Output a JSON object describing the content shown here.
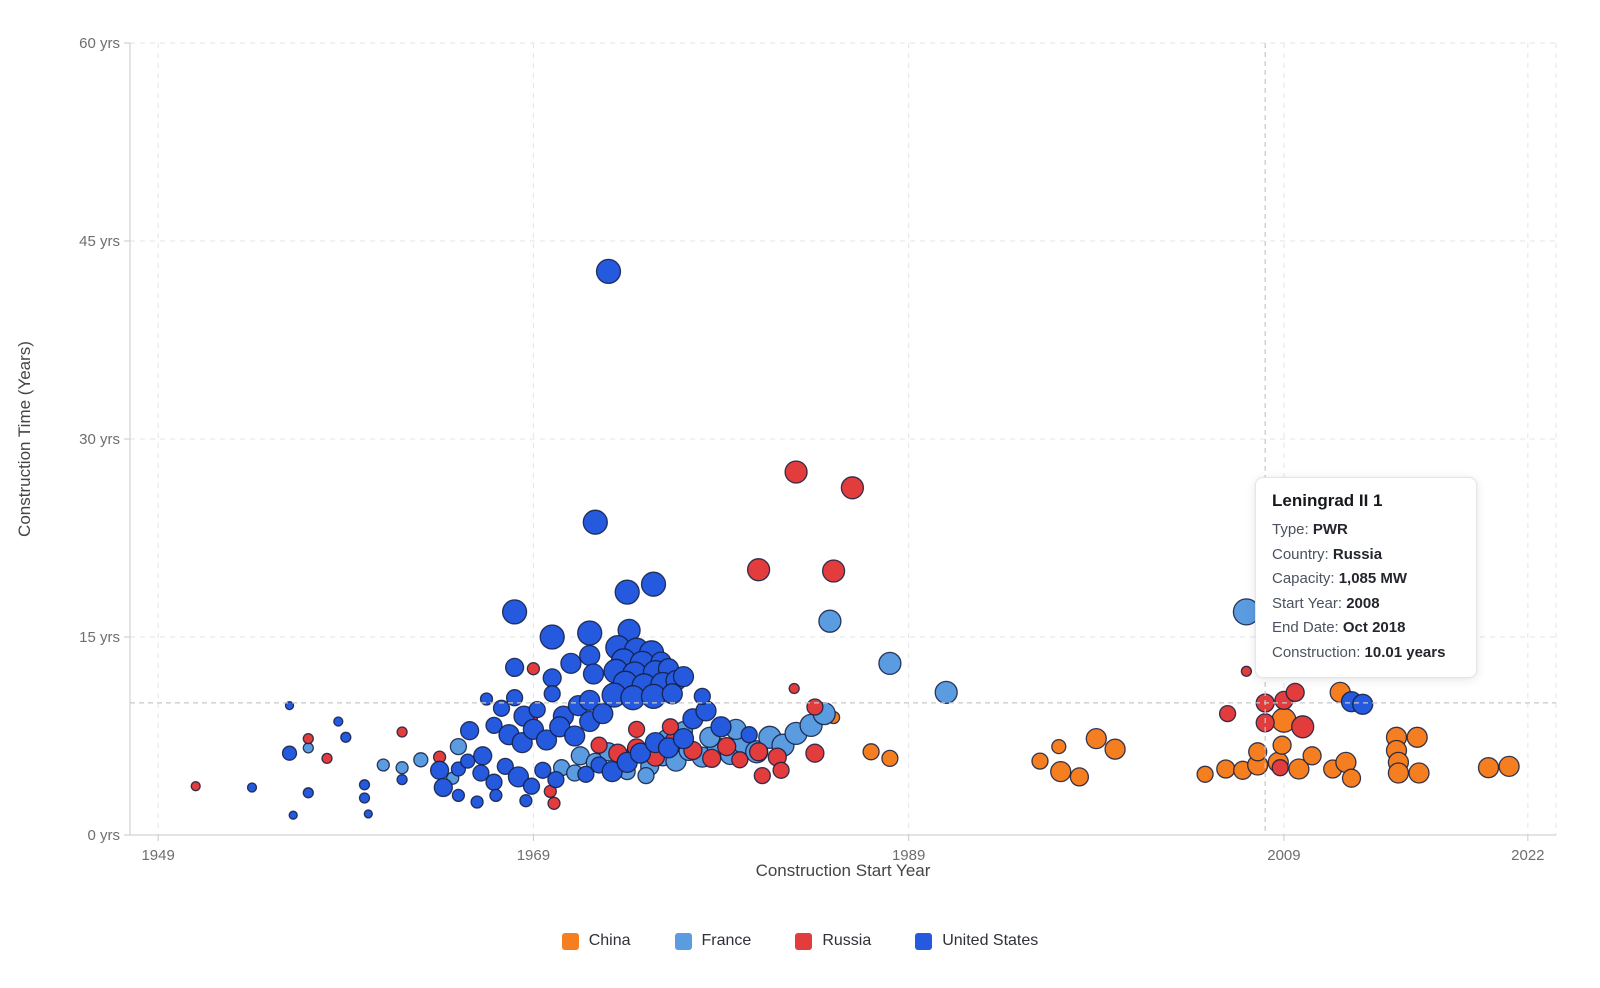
{
  "hovered_point": {
    "series": "Russia",
    "start_year": 2008,
    "construction_years": 10.01
  },
  "tooltip": {
    "title": "Leningrad II 1",
    "rows": [
      {
        "label": "Type:",
        "value": "PWR"
      },
      {
        "label": "Country:",
        "value": "Russia"
      },
      {
        "label": "Capacity:",
        "value": "1,085 MW"
      },
      {
        "label": "Start Year:",
        "value": "2008"
      },
      {
        "label": "End Date:",
        "value": "Oct 2018"
      },
      {
        "label": "Construction:",
        "value": "10.01 years"
      }
    ]
  },
  "legend": {
    "items": [
      {
        "label": "China",
        "color": "#F57E20"
      },
      {
        "label": "France",
        "color": "#5B9BE0"
      },
      {
        "label": "Russia",
        "color": "#E23C3C"
      },
      {
        "label": "United States",
        "color": "#2559DE"
      }
    ]
  },
  "chart_data": {
    "type": "scatter",
    "title": "",
    "xlabel": "Construction Start Year",
    "ylabel": "Construction Time (Years)",
    "xlim": [
      1947.5,
      2023.5
    ],
    "ylim": [
      0,
      60
    ],
    "x_ticks": [
      1949,
      1969,
      1989,
      2009,
      2022
    ],
    "y_ticks": [
      0,
      15,
      30,
      45,
      60
    ],
    "x_tick_labels": [
      "1949",
      "1969",
      "1989",
      "2009",
      "2022"
    ],
    "y_tick_labels": [
      "0 yrs",
      "15 yrs",
      "30 yrs",
      "45 yrs",
      "60 yrs"
    ],
    "grid": "dashed",
    "legend_position": "bottom",
    "bubble_note": "points are [start_year, construction_years, bubble_radius_px]; radius encodes capacity (MW)",
    "crosshair": {
      "x": 2008,
      "y": 10.01
    },
    "series": [
      {
        "name": "China",
        "color": "#F57E20",
        "points": [
          [
            1985.0,
            8.9,
            6
          ],
          [
            1987.0,
            6.3,
            8
          ],
          [
            1988.0,
            5.8,
            8
          ],
          [
            1996.0,
            5.6,
            8
          ],
          [
            1997.0,
            6.7,
            7
          ],
          [
            1997.1,
            4.8,
            10
          ],
          [
            1998.1,
            4.4,
            9
          ],
          [
            1999.0,
            7.3,
            10
          ],
          [
            2000.0,
            6.5,
            10
          ],
          [
            2004.8,
            4.6,
            8
          ],
          [
            2005.9,
            5.0,
            9
          ],
          [
            2006.8,
            4.9,
            9
          ],
          [
            2007.6,
            5.3,
            10
          ],
          [
            2008.7,
            5.5,
            10
          ],
          [
            2009.8,
            5.0,
            10
          ],
          [
            2008.9,
            6.8,
            9
          ],
          [
            2007.6,
            6.3,
            9
          ],
          [
            2009.0,
            8.7,
            12
          ],
          [
            2012.0,
            10.8,
            10
          ],
          [
            2011.6,
            5.0,
            9
          ],
          [
            2012.3,
            5.5,
            10
          ],
          [
            2012.6,
            4.3,
            9
          ],
          [
            2010.5,
            6.0,
            9
          ],
          [
            2015.0,
            7.4,
            10
          ],
          [
            2016.1,
            7.4,
            10
          ],
          [
            2015.0,
            6.4,
            10
          ],
          [
            2015.1,
            5.5,
            10
          ],
          [
            2015.1,
            4.7,
            10
          ],
          [
            2016.2,
            4.7,
            10
          ],
          [
            2019.9,
            5.1,
            10
          ],
          [
            2021.0,
            5.2,
            10
          ]
        ]
      },
      {
        "name": "France",
        "color": "#5B9BE0",
        "points": [
          [
            1957.0,
            6.6,
            5
          ],
          [
            1961.0,
            5.3,
            6
          ],
          [
            1962.0,
            5.1,
            6
          ],
          [
            1963.0,
            5.7,
            7
          ],
          [
            1965.0,
            6.7,
            8
          ],
          [
            1964.7,
            4.3,
            6
          ],
          [
            1970.5,
            5.1,
            8
          ],
          [
            1971.2,
            4.7,
            8
          ],
          [
            1971.5,
            6.0,
            9
          ],
          [
            1972.3,
            5.5,
            9
          ],
          [
            1973.0,
            6.3,
            9
          ],
          [
            1973.8,
            5.8,
            9
          ],
          [
            1974.5,
            6.5,
            9
          ],
          [
            1975.2,
            5.2,
            9
          ],
          [
            1975.9,
            6.0,
            10
          ],
          [
            1976.6,
            5.6,
            10
          ],
          [
            1977.3,
            6.4,
            10
          ],
          [
            1978.0,
            5.9,
            10
          ],
          [
            1978.8,
            6.6,
            10
          ],
          [
            1979.5,
            6.1,
            10
          ],
          [
            1980.2,
            7.0,
            11
          ],
          [
            1980.9,
            6.3,
            11
          ],
          [
            1981.6,
            7.4,
            11
          ],
          [
            1982.3,
            6.8,
            11
          ],
          [
            1983.0,
            7.7,
            11
          ],
          [
            1983.8,
            8.3,
            11
          ],
          [
            1984.5,
            9.2,
            11
          ],
          [
            1976.1,
            7.3,
            9
          ],
          [
            1977.0,
            7.9,
            9
          ],
          [
            1978.4,
            7.4,
            10
          ],
          [
            1979.8,
            8.0,
            10
          ],
          [
            1974.0,
            4.8,
            8
          ],
          [
            1975.0,
            4.5,
            8
          ],
          [
            1984.8,
            16.2,
            11
          ],
          [
            1988.0,
            13.0,
            11
          ],
          [
            1991.0,
            10.8,
            11
          ],
          [
            2007.0,
            16.9,
            13
          ]
        ]
      },
      {
        "name": "Russia",
        "color": "#E23C3C",
        "points": [
          [
            1951.0,
            3.7,
            4.5
          ],
          [
            1957.0,
            7.3,
            5
          ],
          [
            1958.0,
            5.8,
            5
          ],
          [
            1962.0,
            7.8,
            5
          ],
          [
            1964.0,
            5.9,
            6
          ],
          [
            1969.0,
            12.6,
            6
          ],
          [
            1968.9,
            8.9,
            6
          ],
          [
            1969.9,
            3.3,
            6
          ],
          [
            1970.1,
            2.4,
            6
          ],
          [
            1972.5,
            6.8,
            8
          ],
          [
            1973.5,
            6.2,
            9
          ],
          [
            1974.5,
            6.6,
            9
          ],
          [
            1975.5,
            5.9,
            9
          ],
          [
            1976.5,
            7.1,
            9
          ],
          [
            1977.5,
            6.4,
            9
          ],
          [
            1978.5,
            5.8,
            9
          ],
          [
            1979.3,
            6.7,
            9
          ],
          [
            1980.0,
            5.7,
            8
          ],
          [
            1981.0,
            6.3,
            9
          ],
          [
            1982.0,
            5.9,
            9
          ],
          [
            1984.0,
            6.2,
            9
          ],
          [
            1981.2,
            4.5,
            8
          ],
          [
            1982.2,
            4.9,
            8
          ],
          [
            1974.5,
            8.0,
            8
          ],
          [
            1976.3,
            8.2,
            8
          ],
          [
            1982.9,
            11.1,
            5
          ],
          [
            1984.0,
            9.7,
            8
          ],
          [
            1983.0,
            27.5,
            11
          ],
          [
            1986.0,
            26.3,
            11
          ],
          [
            1981.0,
            20.1,
            11
          ],
          [
            1985.0,
            20.0,
            11
          ],
          [
            2006.0,
            9.2,
            8
          ],
          [
            2008.0,
            10.0,
            9
          ],
          [
            2009.0,
            10.2,
            9
          ],
          [
            2009.6,
            10.8,
            9
          ],
          [
            2007.0,
            12.4,
            5
          ],
          [
            2008.0,
            8.5,
            9
          ],
          [
            2010.0,
            8.2,
            11
          ],
          [
            2008.8,
            5.1,
            8
          ]
        ]
      },
      {
        "name": "United States",
        "color": "#2559DE",
        "points": [
          [
            1954.0,
            3.6,
            4.5
          ],
          [
            1956.0,
            9.8,
            4
          ],
          [
            1956.0,
            6.2,
            7
          ],
          [
            1957.0,
            3.2,
            5
          ],
          [
            1956.2,
            1.5,
            4
          ],
          [
            1959.0,
            7.4,
            5
          ],
          [
            1958.6,
            8.6,
            4.5
          ],
          [
            1960.0,
            3.8,
            5
          ],
          [
            1960.0,
            2.8,
            5
          ],
          [
            1960.2,
            1.6,
            4
          ],
          [
            1962.0,
            4.2,
            5
          ],
          [
            1964.0,
            4.9,
            9
          ],
          [
            1964.2,
            3.6,
            9
          ],
          [
            1965.0,
            5.0,
            7
          ],
          [
            1965.0,
            3.0,
            6
          ],
          [
            1966.0,
            2.5,
            6
          ],
          [
            1965.6,
            7.9,
            9
          ],
          [
            1966.3,
            6.0,
            9
          ],
          [
            1973.0,
            42.7,
            12
          ],
          [
            1972.3,
            23.7,
            12
          ],
          [
            1974.0,
            18.4,
            12
          ],
          [
            1975.4,
            19.0,
            12
          ],
          [
            1968.0,
            16.9,
            12
          ],
          [
            1970.0,
            15.0,
            12
          ],
          [
            1972.0,
            15.3,
            12
          ],
          [
            1974.1,
            15.5,
            11
          ],
          [
            1968.0,
            12.7,
            9
          ],
          [
            1970.0,
            11.9,
            9
          ],
          [
            1971.0,
            13.0,
            10
          ],
          [
            1972.0,
            13.6,
            10
          ],
          [
            1972.2,
            12.2,
            10
          ],
          [
            1973.5,
            14.2,
            12
          ],
          [
            1974.5,
            14.0,
            12
          ],
          [
            1975.3,
            13.8,
            12
          ],
          [
            1973.8,
            13.2,
            12
          ],
          [
            1974.8,
            13.0,
            12
          ],
          [
            1975.8,
            13.1,
            10
          ],
          [
            1973.4,
            12.4,
            12
          ],
          [
            1974.4,
            12.2,
            12
          ],
          [
            1975.5,
            12.3,
            12
          ],
          [
            1976.2,
            12.6,
            10
          ],
          [
            1973.9,
            11.5,
            12
          ],
          [
            1974.9,
            11.3,
            12
          ],
          [
            1975.9,
            11.4,
            12
          ],
          [
            1976.6,
            11.7,
            10
          ],
          [
            1973.3,
            10.6,
            12
          ],
          [
            1974.3,
            10.4,
            12
          ],
          [
            1975.4,
            10.5,
            12
          ],
          [
            1976.4,
            10.7,
            10
          ],
          [
            1977.0,
            12.0,
            10
          ],
          [
            1966.5,
            10.3,
            6
          ],
          [
            1967.3,
            9.6,
            8
          ],
          [
            1968.0,
            10.4,
            8
          ],
          [
            1968.5,
            9.0,
            10
          ],
          [
            1969.2,
            9.5,
            8
          ],
          [
            1970.0,
            10.7,
            8
          ],
          [
            1970.6,
            9.0,
            10
          ],
          [
            1971.4,
            9.8,
            10
          ],
          [
            1972.0,
            10.2,
            10
          ],
          [
            1966.9,
            8.3,
            8
          ],
          [
            1967.7,
            7.6,
            10
          ],
          [
            1968.4,
            7.0,
            10
          ],
          [
            1969.0,
            8.0,
            10
          ],
          [
            1969.7,
            7.2,
            10
          ],
          [
            1970.4,
            8.2,
            10
          ],
          [
            1971.2,
            7.5,
            10
          ],
          [
            1972.0,
            8.6,
            10
          ],
          [
            1972.7,
            9.2,
            10
          ],
          [
            1965.5,
            5.6,
            7
          ],
          [
            1966.2,
            4.7,
            8
          ],
          [
            1966.9,
            4.0,
            8
          ],
          [
            1967.5,
            5.2,
            8
          ],
          [
            1968.2,
            4.4,
            10
          ],
          [
            1968.9,
            3.7,
            8
          ],
          [
            1969.5,
            4.9,
            8
          ],
          [
            1970.2,
            4.2,
            8
          ],
          [
            1967.0,
            3.0,
            6
          ],
          [
            1968.6,
            2.6,
            6
          ],
          [
            1971.8,
            4.6,
            8
          ],
          [
            1972.5,
            5.3,
            8
          ],
          [
            1973.2,
            4.8,
            10
          ],
          [
            1974.0,
            5.5,
            10
          ],
          [
            1974.7,
            6.2,
            10
          ],
          [
            1975.5,
            7.0,
            10
          ],
          [
            1976.2,
            6.6,
            10
          ],
          [
            1977.0,
            7.3,
            10
          ],
          [
            1977.5,
            8.8,
            10
          ],
          [
            1978.2,
            9.4,
            10
          ],
          [
            1978.0,
            10.5,
            8
          ],
          [
            1979.0,
            8.2,
            10
          ],
          [
            1980.5,
            7.6,
            8
          ],
          [
            2012.6,
            10.1,
            10
          ],
          [
            2013.2,
            9.9,
            10
          ]
        ]
      }
    ]
  },
  "style": {
    "grid_color": "#e4e4e4",
    "axis_color": "#c9c9c9",
    "tick_text_color": "#6e6e6e",
    "axis_title_color": "#454545",
    "crosshair_color": "#c8c8c8",
    "point_stroke": "rgba(18,28,64,0.85)"
  }
}
